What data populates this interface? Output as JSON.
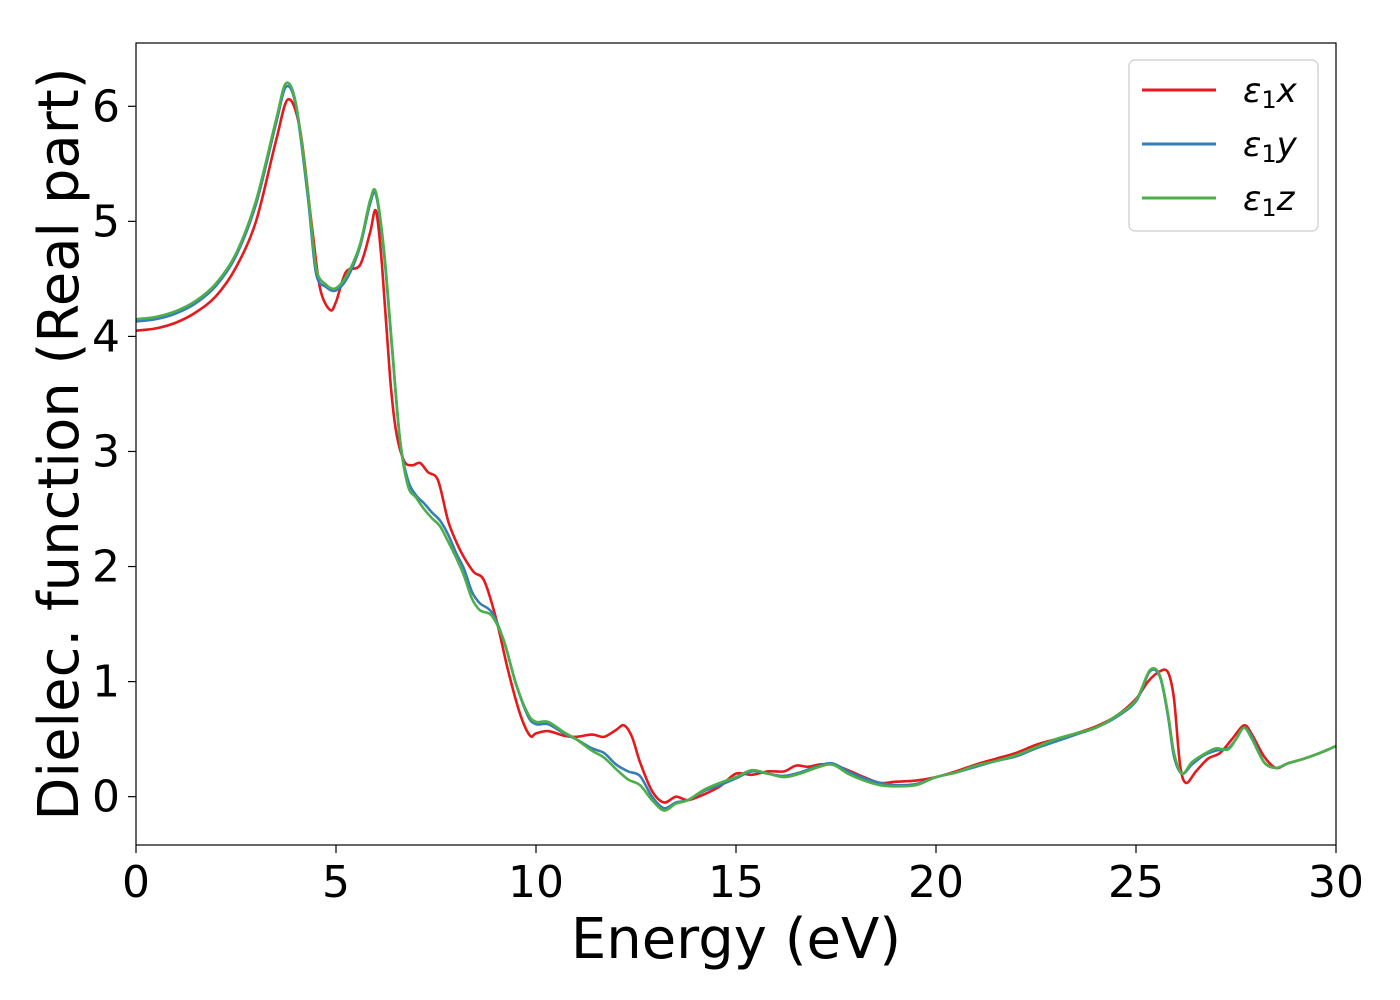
{
  "chart_data": {
    "type": "line",
    "title": "",
    "xlabel": "Energy (eV)",
    "ylabel": "Dielec. function (Real part)",
    "xlim": [
      0,
      30
    ],
    "ylim": [
      -0.42,
      6.55
    ],
    "xticks": [
      0,
      5,
      10,
      15,
      20,
      25,
      30
    ],
    "yticks": [
      0,
      1,
      2,
      3,
      4,
      5,
      6
    ],
    "grid": false,
    "legend_position": "top-right",
    "series": [
      {
        "name": "ε₁x",
        "legend_base": "ε",
        "legend_sub": "1",
        "legend_var": "x",
        "color": "#e41a1c",
        "x": [
          0,
          0.5,
          1,
          1.5,
          2,
          2.5,
          3,
          3.5,
          3.8,
          4.1,
          4.4,
          4.6,
          4.85,
          5.0,
          5.25,
          5.6,
          5.85,
          6.0,
          6.15,
          6.35,
          6.5,
          6.7,
          6.9,
          7.1,
          7.3,
          7.55,
          7.8,
          8.0,
          8.2,
          8.45,
          8.7,
          9.0,
          9.3,
          9.6,
          9.85,
          10.0,
          10.3,
          10.7,
          11.0,
          11.4,
          11.7,
          12.0,
          12.2,
          12.4,
          12.6,
          12.9,
          13.2,
          13.5,
          13.8,
          14.2,
          14.6,
          15.0,
          15.4,
          15.8,
          16.2,
          16.5,
          16.8,
          17.1,
          17.4,
          17.8,
          18.2,
          18.6,
          19.0,
          19.5,
          20.0,
          20.5,
          21.0,
          21.5,
          22.0,
          22.5,
          23.0,
          23.5,
          24.0,
          24.5,
          25.0,
          25.3,
          25.6,
          25.8,
          25.95,
          26.1,
          26.25,
          26.5,
          26.8,
          27.1,
          27.4,
          27.7,
          27.9,
          28.2,
          28.5,
          28.8,
          29.2,
          29.6,
          30.0
        ],
        "values": [
          4.05,
          4.07,
          4.12,
          4.21,
          4.35,
          4.6,
          5.0,
          5.7,
          6.06,
          5.8,
          4.95,
          4.42,
          4.23,
          4.3,
          4.56,
          4.62,
          4.9,
          5.09,
          4.62,
          3.65,
          3.18,
          2.92,
          2.88,
          2.9,
          2.82,
          2.75,
          2.4,
          2.22,
          2.08,
          1.95,
          1.88,
          1.55,
          1.1,
          0.72,
          0.53,
          0.55,
          0.57,
          0.53,
          0.52,
          0.54,
          0.52,
          0.58,
          0.62,
          0.52,
          0.3,
          0.05,
          -0.05,
          0.0,
          -0.03,
          0.02,
          0.09,
          0.2,
          0.19,
          0.22,
          0.22,
          0.27,
          0.26,
          0.28,
          0.28,
          0.23,
          0.17,
          0.12,
          0.13,
          0.14,
          0.17,
          0.22,
          0.28,
          0.33,
          0.38,
          0.45,
          0.5,
          0.55,
          0.61,
          0.7,
          0.85,
          1.0,
          1.09,
          1.08,
          0.85,
          0.28,
          0.12,
          0.22,
          0.33,
          0.38,
          0.5,
          0.62,
          0.54,
          0.35,
          0.25,
          0.29,
          0.33,
          0.38,
          0.44
        ]
      },
      {
        "name": "ε₁y",
        "legend_base": "ε",
        "legend_sub": "1",
        "legend_var": "y",
        "color": "#377eb8",
        "x": [
          0,
          0.5,
          1,
          1.5,
          2,
          2.5,
          3,
          3.5,
          3.75,
          4.0,
          4.3,
          4.5,
          4.75,
          5.0,
          5.3,
          5.6,
          5.85,
          6.0,
          6.2,
          6.4,
          6.6,
          6.8,
          7.0,
          7.2,
          7.4,
          7.6,
          7.8,
          8.0,
          8.2,
          8.4,
          8.6,
          8.9,
          9.2,
          9.5,
          9.8,
          10.0,
          10.3,
          10.7,
          11.0,
          11.4,
          11.7,
          12.0,
          12.3,
          12.6,
          12.9,
          13.2,
          13.5,
          13.8,
          14.2,
          14.6,
          15.0,
          15.4,
          15.8,
          16.2,
          16.6,
          17.0,
          17.4,
          17.8,
          18.2,
          18.6,
          19.0,
          19.5,
          20.0,
          20.5,
          21.0,
          21.5,
          22.0,
          22.5,
          23.0,
          23.5,
          24.0,
          24.5,
          25.0,
          25.35,
          25.6,
          25.8,
          25.95,
          26.15,
          26.4,
          26.7,
          27.0,
          27.3,
          27.5,
          27.7,
          27.9,
          28.2,
          28.5,
          28.8,
          29.2,
          29.6,
          30.0
        ],
        "values": [
          4.13,
          4.15,
          4.2,
          4.29,
          4.44,
          4.7,
          5.15,
          5.85,
          6.17,
          6.0,
          5.2,
          4.55,
          4.43,
          4.4,
          4.52,
          4.78,
          5.15,
          5.23,
          4.72,
          3.9,
          3.1,
          2.75,
          2.62,
          2.55,
          2.47,
          2.4,
          2.28,
          2.12,
          1.98,
          1.78,
          1.68,
          1.6,
          1.35,
          0.98,
          0.7,
          0.63,
          0.63,
          0.55,
          0.5,
          0.42,
          0.38,
          0.28,
          0.22,
          0.18,
          0.0,
          -0.1,
          -0.05,
          -0.03,
          0.05,
          0.1,
          0.16,
          0.22,
          0.2,
          0.18,
          0.21,
          0.26,
          0.29,
          0.22,
          0.16,
          0.12,
          0.1,
          0.11,
          0.17,
          0.21,
          0.26,
          0.31,
          0.35,
          0.42,
          0.48,
          0.54,
          0.6,
          0.69,
          0.83,
          1.09,
          1.04,
          0.7,
          0.35,
          0.2,
          0.28,
          0.36,
          0.4,
          0.42,
          0.5,
          0.6,
          0.52,
          0.3,
          0.25,
          0.29,
          0.33,
          0.38,
          0.44
        ]
      },
      {
        "name": "ε₁z",
        "legend_base": "ε",
        "legend_sub": "1",
        "legend_var": "z",
        "color": "#4daf4a",
        "x": [
          0,
          0.5,
          1,
          1.5,
          2,
          2.5,
          3,
          3.5,
          3.75,
          4.0,
          4.3,
          4.5,
          4.75,
          5.0,
          5.3,
          5.6,
          5.85,
          6.0,
          6.2,
          6.4,
          6.6,
          6.8,
          7.0,
          7.2,
          7.4,
          7.6,
          7.8,
          8.0,
          8.2,
          8.4,
          8.6,
          8.9,
          9.2,
          9.5,
          9.8,
          10.0,
          10.3,
          10.7,
          11.0,
          11.4,
          11.7,
          12.0,
          12.3,
          12.6,
          12.9,
          13.2,
          13.5,
          13.8,
          14.2,
          14.6,
          15.0,
          15.4,
          15.8,
          16.2,
          16.6,
          17.0,
          17.4,
          17.8,
          18.2,
          18.6,
          19.0,
          19.5,
          20.0,
          20.5,
          21.0,
          21.5,
          22.0,
          22.5,
          23.0,
          23.5,
          24.0,
          24.5,
          25.0,
          25.35,
          25.6,
          25.8,
          25.95,
          26.15,
          26.4,
          26.7,
          27.0,
          27.3,
          27.5,
          27.7,
          27.9,
          28.2,
          28.5,
          28.8,
          29.2,
          29.6,
          30.0
        ],
        "values": [
          4.15,
          4.17,
          4.22,
          4.31,
          4.46,
          4.72,
          5.18,
          5.88,
          6.2,
          6.02,
          5.25,
          4.6,
          4.45,
          4.42,
          4.55,
          4.8,
          5.18,
          5.25,
          4.75,
          3.92,
          3.1,
          2.7,
          2.6,
          2.5,
          2.42,
          2.35,
          2.22,
          2.08,
          1.92,
          1.72,
          1.62,
          1.57,
          1.35,
          0.98,
          0.72,
          0.65,
          0.65,
          0.56,
          0.5,
          0.4,
          0.34,
          0.24,
          0.15,
          0.1,
          -0.03,
          -0.12,
          -0.06,
          -0.03,
          0.06,
          0.12,
          0.17,
          0.23,
          0.2,
          0.17,
          0.2,
          0.25,
          0.28,
          0.2,
          0.14,
          0.1,
          0.09,
          0.1,
          0.17,
          0.21,
          0.27,
          0.31,
          0.36,
          0.43,
          0.5,
          0.55,
          0.6,
          0.7,
          0.84,
          1.1,
          1.05,
          0.72,
          0.38,
          0.2,
          0.3,
          0.37,
          0.42,
          0.41,
          0.5,
          0.6,
          0.5,
          0.3,
          0.25,
          0.29,
          0.33,
          0.38,
          0.44
        ]
      }
    ]
  }
}
